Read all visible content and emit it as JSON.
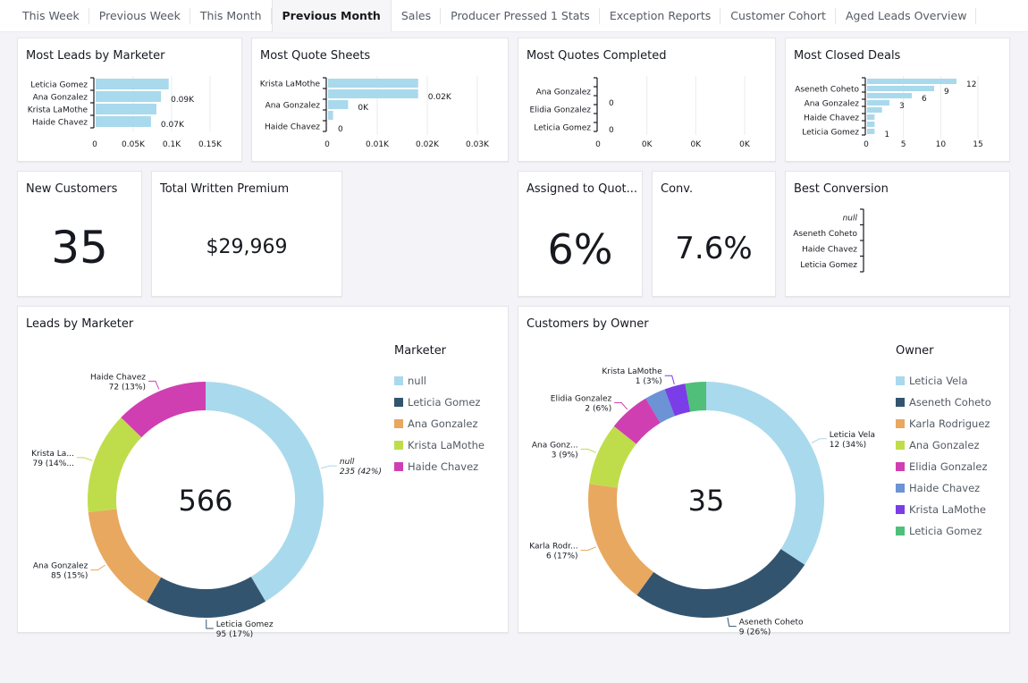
{
  "tabs": [
    {
      "label": "This Week",
      "active": false
    },
    {
      "label": "Previous Week",
      "active": false
    },
    {
      "label": "This Month",
      "active": false
    },
    {
      "label": "Previous Month",
      "active": true
    },
    {
      "label": "Sales",
      "active": false
    },
    {
      "label": "Producer Pressed 1 Stats",
      "active": false
    },
    {
      "label": "Exception Reports",
      "active": false
    },
    {
      "label": "Customer Cohort",
      "active": false
    },
    {
      "label": "Aged Leads Overview",
      "active": false
    }
  ],
  "colors": {
    "bar": "#a9d9ec",
    "text": "#16191f",
    "muted": "#545b64",
    "grid": "#e9ebed"
  },
  "kpis": {
    "new_customers": {
      "title": "New Customers",
      "value": "35"
    },
    "total_written_premium": {
      "title": "Total Written Premium",
      "value": "$29,969"
    },
    "assigned_to_quote": {
      "title": "Assigned to Quot...",
      "value": "6%"
    },
    "conv": {
      "title": "Conv.",
      "value": "7.6%"
    }
  },
  "chart_data": [
    {
      "id": "most_leads",
      "type": "bar",
      "orientation": "horizontal",
      "title": "Most Leads by Marketer",
      "categories": [
        "Leticia Gomez",
        "Ana Gonzalez",
        "Krista LaMothe",
        "Haide Chavez"
      ],
      "bar_slots": [
        {
          "category": "Leticia Gomez",
          "value": 95
        },
        {
          "category": "Ana Gonzalez",
          "value": 85,
          "label": "0.09K"
        },
        {
          "category": "Krista LaMothe",
          "value": 79
        },
        {
          "category": "Haide Chavez",
          "value": 72,
          "label": "0.07K"
        }
      ],
      "xlim": [
        0,
        150
      ],
      "xticks": [
        0,
        50,
        100,
        150
      ],
      "xtick_labels": [
        "0",
        "0.05K",
        "0.1K",
        "0.15K"
      ],
      "grid": true
    },
    {
      "id": "most_quote_sheets",
      "type": "bar",
      "orientation": "horizontal",
      "title": "Most Quote Sheets",
      "categories": [
        "Krista LaMothe",
        "Ana Gonzalez",
        "Haide Chavez"
      ],
      "bar_slots": [
        {
          "category": "Krista LaMothe",
          "value": 18
        },
        {
          "category": "",
          "value": 18,
          "label": "0.02K"
        },
        {
          "category": "Ana Gonzalez",
          "value": 4,
          "label": "0K"
        },
        {
          "category": "",
          "value": 1
        },
        {
          "category": "Haide Chavez",
          "value": 0,
          "label": "0"
        }
      ],
      "xlim": [
        0,
        30
      ],
      "xticks": [
        0,
        10,
        20,
        30
      ],
      "xtick_labels": [
        "0",
        "0.01K",
        "0.02K",
        "0.03K"
      ],
      "grid": true
    },
    {
      "id": "most_quotes_completed",
      "type": "bar",
      "orientation": "horizontal",
      "title": "Most Quotes Completed",
      "categories": [
        "Ana Gonzalez",
        "Elidia Gonzalez",
        "Leticia Gomez"
      ],
      "bar_slots": [
        {
          "category": "",
          "value": 0
        },
        {
          "category": "Ana Gonzalez",
          "value": 0
        },
        {
          "category": "",
          "value": 0,
          "label": "0"
        },
        {
          "category": "Elidia Gonzalez",
          "value": 0
        },
        {
          "category": "",
          "value": 0
        },
        {
          "category": "Leticia Gomez",
          "value": 0,
          "label": "0"
        }
      ],
      "xlim": [
        0,
        3
      ],
      "xticks": [
        0,
        1,
        2,
        3
      ],
      "xtick_labels": [
        "0",
        "0K",
        "0K",
        "0K"
      ],
      "grid": true
    },
    {
      "id": "most_closed_deals",
      "type": "bar",
      "orientation": "horizontal",
      "title": "Most Closed Deals",
      "categories": [
        "Aseneth Coheto",
        "Ana Gonzalez",
        "Haide Chavez",
        "Leticia Gomez"
      ],
      "bar_slots": [
        {
          "category": "",
          "value": 12,
          "label": "12"
        },
        {
          "category": "Aseneth Coheto",
          "value": 9,
          "label": "9"
        },
        {
          "category": "",
          "value": 6,
          "label": "6"
        },
        {
          "category": "Ana Gonzalez",
          "value": 3,
          "label": "3"
        },
        {
          "category": "",
          "value": 2
        },
        {
          "category": "Haide Chavez",
          "value": 1
        },
        {
          "category": "",
          "value": 1
        },
        {
          "category": "Leticia Gomez",
          "value": 1,
          "label": "1"
        }
      ],
      "xlim": [
        0,
        15
      ],
      "xticks": [
        0,
        5,
        10,
        15
      ],
      "xtick_labels": [
        "0",
        "5",
        "10",
        "15"
      ],
      "grid": true
    },
    {
      "id": "best_conversion",
      "type": "bar",
      "orientation": "horizontal",
      "title": "Best Conversion",
      "categories": [
        "null",
        "Aseneth Coheto",
        "Haide Chavez",
        "Leticia Gomez"
      ],
      "bar_slots": [
        {
          "category": "null",
          "value": 0,
          "italic": true
        },
        {
          "category": "Aseneth Coheto",
          "value": 0
        },
        {
          "category": "Haide Chavez",
          "value": 0
        },
        {
          "category": "Leticia Gomez",
          "value": 0
        }
      ],
      "xlim": [
        0,
        1
      ],
      "xticks": [],
      "xtick_labels": [],
      "grid": false
    },
    {
      "id": "leads_by_marketer",
      "type": "pie",
      "donut": true,
      "title": "Leads by Marketer",
      "center_label": "566",
      "legend_title": "Marketer",
      "legend_position": "right",
      "slices": [
        {
          "label": "null",
          "value": 235,
          "percent": "42%",
          "color": "#a9d9ec",
          "callout": [
            "null",
            "235 (42%)"
          ],
          "italic": true
        },
        {
          "label": "Leticia Gomez",
          "value": 95,
          "percent": "17%",
          "color": "#33546f",
          "callout": [
            "Leticia Gomez",
            "95 (17%)"
          ]
        },
        {
          "label": "Ana Gonzalez",
          "value": 85,
          "percent": "15%",
          "color": "#e8a85f",
          "callout": [
            "Ana Gonzalez",
            "85 (15%)"
          ]
        },
        {
          "label": "Krista LaMothe",
          "value": 79,
          "percent": "14%",
          "color": "#bfdd4b",
          "callout": [
            "Krista La...",
            "79 (14%..."
          ]
        },
        {
          "label": "Haide Chavez",
          "value": 72,
          "percent": "13%",
          "color": "#d03fb1",
          "callout": [
            "Haide Chavez",
            "72 (13%)"
          ]
        }
      ]
    },
    {
      "id": "customers_by_owner",
      "type": "pie",
      "donut": true,
      "title": "Customers by Owner",
      "center_label": "35",
      "legend_title": "Owner",
      "legend_position": "right",
      "slices": [
        {
          "label": "Leticia Vela",
          "value": 12,
          "percent": "34%",
          "color": "#a9d9ec",
          "callout": [
            "Leticia Vela",
            "12 (34%)"
          ]
        },
        {
          "label": "Aseneth Coheto",
          "value": 9,
          "percent": "26%",
          "color": "#33546f",
          "callout": [
            "Aseneth Coheto",
            "9 (26%)"
          ]
        },
        {
          "label": "Karla Rodriguez",
          "value": 6,
          "percent": "17%",
          "color": "#e8a85f",
          "callout": [
            "Karla Rodr...",
            "6 (17%)"
          ]
        },
        {
          "label": "Ana Gonzalez",
          "value": 3,
          "percent": "9%",
          "color": "#bfdd4b",
          "callout": [
            "Ana Gonz...",
            "3 (9%)"
          ]
        },
        {
          "label": "Elidia Gonzalez",
          "value": 2,
          "percent": "6%",
          "color": "#d03fb1",
          "callout": [
            "Elidia Gonzalez",
            "2 (6%)"
          ]
        },
        {
          "label": "Haide Chavez",
          "value": 1,
          "percent": "3%",
          "color": "#6b93d6",
          "callout": null
        },
        {
          "label": "Krista LaMothe",
          "value": 1,
          "percent": "3%",
          "color": "#7b3de8",
          "callout": [
            "Krista LaMothe",
            "1 (3%)"
          ]
        },
        {
          "label": "Leticia Gomez",
          "value": 1,
          "percent": "3%",
          "color": "#4fbf7a",
          "callout": null
        }
      ]
    }
  ]
}
